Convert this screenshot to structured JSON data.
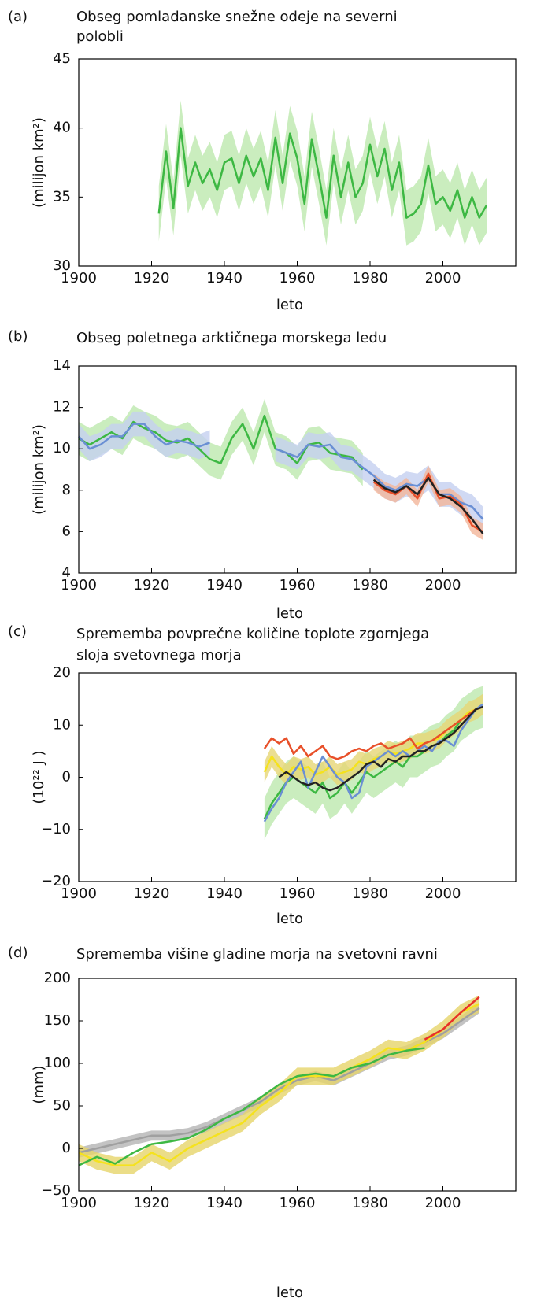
{
  "chart_data": [
    {
      "type": "line",
      "panel": "(a)",
      "title": [
        "Obseg pomladanske snežne odeje na severni",
        "polobli"
      ],
      "x_label": "leto",
      "y_label": "(milijon km²)",
      "xlim": [
        1900,
        2020
      ],
      "xticks": [
        1900,
        1920,
        1940,
        1960,
        1980,
        2000
      ],
      "ylim": [
        30,
        45
      ],
      "yticks": [
        30,
        35,
        40,
        45
      ],
      "x": [
        1922,
        1924,
        1926,
        1928,
        1930,
        1932,
        1934,
        1936,
        1938,
        1940,
        1942,
        1944,
        1946,
        1948,
        1950,
        1952,
        1954,
        1956,
        1958,
        1960,
        1962,
        1964,
        1966,
        1968,
        1970,
        1972,
        1974,
        1976,
        1978,
        1980,
        1982,
        1984,
        1986,
        1988,
        1990,
        1992,
        1994,
        1996,
        1998,
        2000,
        2002,
        2004,
        2006,
        2008,
        2010,
        2012
      ],
      "series": [
        {
          "color": "#3db843",
          "band_color": "#bde8ae",
          "error": 2,
          "values": [
            33.8,
            38.3,
            34.2,
            40,
            35.8,
            37.5,
            36,
            37,
            35.5,
            37.5,
            37.8,
            36,
            38,
            36.5,
            37.8,
            35.5,
            39.3,
            36,
            39.6,
            37.8,
            34.5,
            39.2,
            36.5,
            33.5,
            38,
            35,
            37.5,
            35,
            36,
            38.8,
            36.5,
            38.5,
            35.5,
            37.5,
            33.5,
            33.8,
            34.5,
            37.3,
            34.5,
            35,
            34,
            35.5,
            33.5,
            35,
            33.5,
            34.4
          ]
        }
      ]
    },
    {
      "type": "line",
      "panel": "(b)",
      "title": [
        "Obseg poletnega arktičnega morskega ledu"
      ],
      "x_label": "leto",
      "y_label": "(milijon km²)",
      "xlim": [
        1900,
        2020
      ],
      "xticks": [
        1900,
        1920,
        1940,
        1960,
        1980,
        2000
      ],
      "ylim": [
        4,
        14
      ],
      "yticks": [
        4,
        6,
        8,
        10,
        12,
        14
      ],
      "x": [
        1900,
        1903,
        1906,
        1909,
        1912,
        1915,
        1918,
        1921,
        1924,
        1927,
        1930,
        1933,
        1936,
        1939,
        1942,
        1945,
        1948,
        1951,
        1954,
        1957,
        1960,
        1963,
        1966,
        1969,
        1972,
        1975,
        1978,
        1981,
        1984,
        1987,
        1990,
        1993,
        1996,
        1999,
        2002,
        2005,
        2008,
        2011
      ],
      "series": [
        {
          "color": "#3db843",
          "band_color": "#bde8ae",
          "error": 0.8,
          "values": [
            10.5,
            10.2,
            10.5,
            10.8,
            10.5,
            11.3,
            11,
            10.8,
            10.4,
            10.3,
            10.5,
            10,
            9.5,
            9.3,
            10.5,
            11.2,
            10,
            11.6,
            10,
            9.8,
            9.3,
            10.2,
            10.3,
            9.8,
            9.7,
            9.6,
            9,
            null,
            null,
            null,
            null,
            null,
            null,
            null,
            null,
            null,
            null,
            null
          ]
        },
        {
          "color": "#6a8fd4",
          "band_color": "#c4cff0",
          "error": 0.6,
          "values": [
            10.6,
            10,
            10.2,
            10.6,
            10.6,
            11.2,
            11.2,
            10.6,
            10.2,
            10.4,
            10.3,
            10.1,
            10.3,
            null,
            null,
            null,
            null,
            null,
            10,
            9.8,
            9.6,
            10.2,
            10.1,
            10.2,
            9.6,
            9.5,
            9.1,
            8.7,
            8.2,
            8,
            8.3,
            8.2,
            8.6,
            7.8,
            7.8,
            7.4,
            7.2,
            6.6
          ]
        },
        {
          "color": "#e8502a",
          "band_color": "#f3b59a",
          "error": 0.4,
          "values": [
            null,
            null,
            null,
            null,
            null,
            null,
            null,
            null,
            null,
            null,
            null,
            null,
            null,
            null,
            null,
            null,
            null,
            null,
            null,
            null,
            null,
            null,
            null,
            null,
            null,
            null,
            null,
            8.4,
            8,
            7.8,
            8.2,
            7.6,
            8.8,
            7.6,
            7.7,
            7.3,
            6.3,
            6
          ]
        },
        {
          "color": "#222222",
          "values": [
            null,
            null,
            null,
            null,
            null,
            null,
            null,
            null,
            null,
            null,
            null,
            null,
            null,
            null,
            null,
            null,
            null,
            null,
            null,
            null,
            null,
            null,
            null,
            null,
            null,
            null,
            null,
            8.5,
            8.1,
            7.9,
            8.2,
            7.8,
            8.6,
            7.8,
            7.6,
            7.2,
            6.6,
            5.9
          ]
        }
      ]
    },
    {
      "type": "line",
      "panel": "(c)",
      "title": [
        "Sprememba povprečne količine toplote zgornjega",
        "sloja svetovnega morja"
      ],
      "x_label": "leto",
      "y_label": "(10²² J )",
      "xlim": [
        1900,
        2020
      ],
      "xticks": [
        1900,
        1920,
        1940,
        1960,
        1980,
        2000
      ],
      "ylim": [
        -20,
        20
      ],
      "yticks": [
        {
          "value": -20,
          "label": "−20"
        },
        {
          "value": -10,
          "label": "−10"
        },
        0,
        10,
        20
      ],
      "x": [
        1951,
        1953,
        1955,
        1957,
        1959,
        1961,
        1963,
        1965,
        1967,
        1969,
        1971,
        1973,
        1975,
        1977,
        1979,
        1981,
        1983,
        1985,
        1987,
        1989,
        1991,
        1993,
        1995,
        1997,
        1999,
        2001,
        2003,
        2005,
        2007,
        2009,
        2011
      ],
      "series": [
        {
          "color": "#3db843",
          "band_color": "#bde8ae",
          "error": 4,
          "values": [
            -8,
            -5,
            -3,
            -1,
            0,
            -1,
            -2,
            -3,
            -1,
            -4,
            -3,
            -1,
            -3,
            -1,
            1,
            0,
            1,
            2,
            3,
            2,
            4,
            4,
            5,
            6,
            6.5,
            8,
            9,
            11,
            12,
            13,
            13.5
          ]
        },
        {
          "color": "#f5e21e",
          "band_color": "#e6d675",
          "error": 2,
          "values": [
            1,
            4,
            2,
            0.5,
            2,
            1.5,
            2,
            0.5,
            1,
            2,
            0.5,
            1,
            1.5,
            3,
            2.5,
            3.5,
            4,
            5,
            4.5,
            5,
            5.5,
            6.5,
            6.5,
            7,
            7.5,
            9,
            10,
            11,
            12.5,
            13,
            14
          ]
        },
        {
          "color": "#e8502a",
          "values": [
            5.5,
            7.5,
            6.5,
            7.5,
            4.5,
            6,
            4,
            5,
            6,
            4,
            3.5,
            4,
            5,
            5.5,
            5,
            6,
            6.5,
            5.5,
            6,
            6.5,
            7.5,
            5.5,
            6.5,
            7,
            8,
            9,
            10,
            11,
            12,
            13,
            13.5
          ]
        },
        {
          "color": "#6a8fd4",
          "values": [
            -8.5,
            -6,
            -4,
            -1,
            1,
            3,
            -2,
            1,
            4,
            2,
            0,
            -1,
            -4,
            -3,
            2,
            3,
            4,
            5,
            4,
            5,
            4,
            5,
            6,
            5,
            7,
            7,
            6,
            9,
            11,
            13,
            14
          ]
        },
        {
          "color": "#222222",
          "values": [
            null,
            null,
            0,
            1,
            0,
            -1,
            -1.5,
            -1,
            -2,
            -2.5,
            -2,
            -1,
            0,
            1,
            2.5,
            3,
            2,
            3.5,
            3,
            4,
            4,
            5,
            5,
            6,
            6.5,
            7.5,
            8.5,
            10,
            11.5,
            13,
            13.5
          ]
        }
      ]
    },
    {
      "type": "line",
      "panel": "(d)",
      "title": [
        "Sprememba višine gladine morja na svetovni ravni"
      ],
      "x_label": "leto",
      "y_label": "(mm)",
      "xlim": [
        1900,
        2020
      ],
      "xticks": [
        1900,
        1920,
        1940,
        1960,
        1980,
        2000
      ],
      "ylim": [
        -50,
        200
      ],
      "yticks": [
        {
          "value": -50,
          "label": "−50"
        },
        0,
        50,
        100,
        150,
        200
      ],
      "x": [
        1900,
        1905,
        1910,
        1915,
        1920,
        1925,
        1930,
        1935,
        1940,
        1945,
        1950,
        1955,
        1960,
        1965,
        1970,
        1975,
        1980,
        1985,
        1990,
        1995,
        2000,
        2005,
        2010
      ],
      "series": [
        {
          "color": "#a0a0a0",
          "band_color": "#b4b4b4",
          "error": 6,
          "values": [
            -5,
            0,
            5,
            10,
            15,
            15,
            18,
            25,
            35,
            45,
            55,
            70,
            80,
            85,
            80,
            90,
            100,
            110,
            115,
            125,
            135,
            150,
            165
          ]
        },
        {
          "color": "#f5e21e",
          "band_color": "#e6d46a",
          "error": 10,
          "values": [
            -5,
            -15,
            -20,
            -20,
            -5,
            -15,
            0,
            10,
            20,
            30,
            50,
            65,
            85,
            85,
            85,
            95,
            105,
            118,
            115,
            125,
            140,
            160,
            170
          ]
        },
        {
          "color": "#3db843",
          "values": [
            -20,
            -10,
            -18,
            -5,
            5,
            8,
            12,
            22,
            35,
            45,
            60,
            75,
            85,
            88,
            85,
            95,
            100,
            110,
            115,
            118,
            null,
            null,
            null
          ]
        },
        {
          "color": "#e8302a",
          "values": [
            null,
            null,
            null,
            null,
            null,
            null,
            null,
            null,
            null,
            null,
            null,
            null,
            null,
            null,
            null,
            null,
            null,
            null,
            null,
            128,
            140,
            160,
            178
          ]
        }
      ]
    }
  ]
}
